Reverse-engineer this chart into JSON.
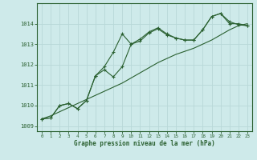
{
  "xlabel": "Graphe pression niveau de la mer (hPa)",
  "bg_color": "#ceeaea",
  "grid_color": "#b8d8d8",
  "line_color": "#2a6030",
  "ylim": [
    1008.75,
    1015.0
  ],
  "xlim": [
    -0.5,
    23.5
  ],
  "yticks": [
    1009,
    1010,
    1011,
    1012,
    1013,
    1014
  ],
  "xticks": [
    0,
    1,
    2,
    3,
    4,
    5,
    6,
    7,
    8,
    9,
    10,
    11,
    12,
    13,
    14,
    15,
    16,
    17,
    18,
    19,
    20,
    21,
    22,
    23
  ],
  "series_straight": [
    1009.35,
    1009.5,
    1009.7,
    1009.9,
    1010.1,
    1010.3,
    1010.5,
    1010.7,
    1010.9,
    1011.1,
    1011.35,
    1011.6,
    1011.85,
    1012.1,
    1012.3,
    1012.5,
    1012.65,
    1012.8,
    1013.0,
    1013.2,
    1013.45,
    1013.7,
    1013.9,
    1014.0
  ],
  "series_wavy1": [
    1009.35,
    1009.4,
    1010.0,
    1010.1,
    1009.85,
    1010.25,
    1011.45,
    1011.75,
    1011.4,
    1011.9,
    1013.0,
    1013.15,
    1013.55,
    1013.75,
    1013.45,
    1013.3,
    1013.2,
    1013.2,
    1013.7,
    1014.35,
    1014.5,
    1014.0,
    1014.0,
    1013.9
  ],
  "series_wavy2": [
    1009.35,
    1009.4,
    1010.0,
    1010.1,
    1009.85,
    1010.25,
    1011.45,
    1011.9,
    1012.6,
    1013.5,
    1013.0,
    1013.25,
    1013.6,
    1013.8,
    1013.5,
    1013.3,
    1013.2,
    1013.2,
    1013.7,
    1014.35,
    1014.5,
    1014.1,
    1013.95,
    1013.9
  ]
}
